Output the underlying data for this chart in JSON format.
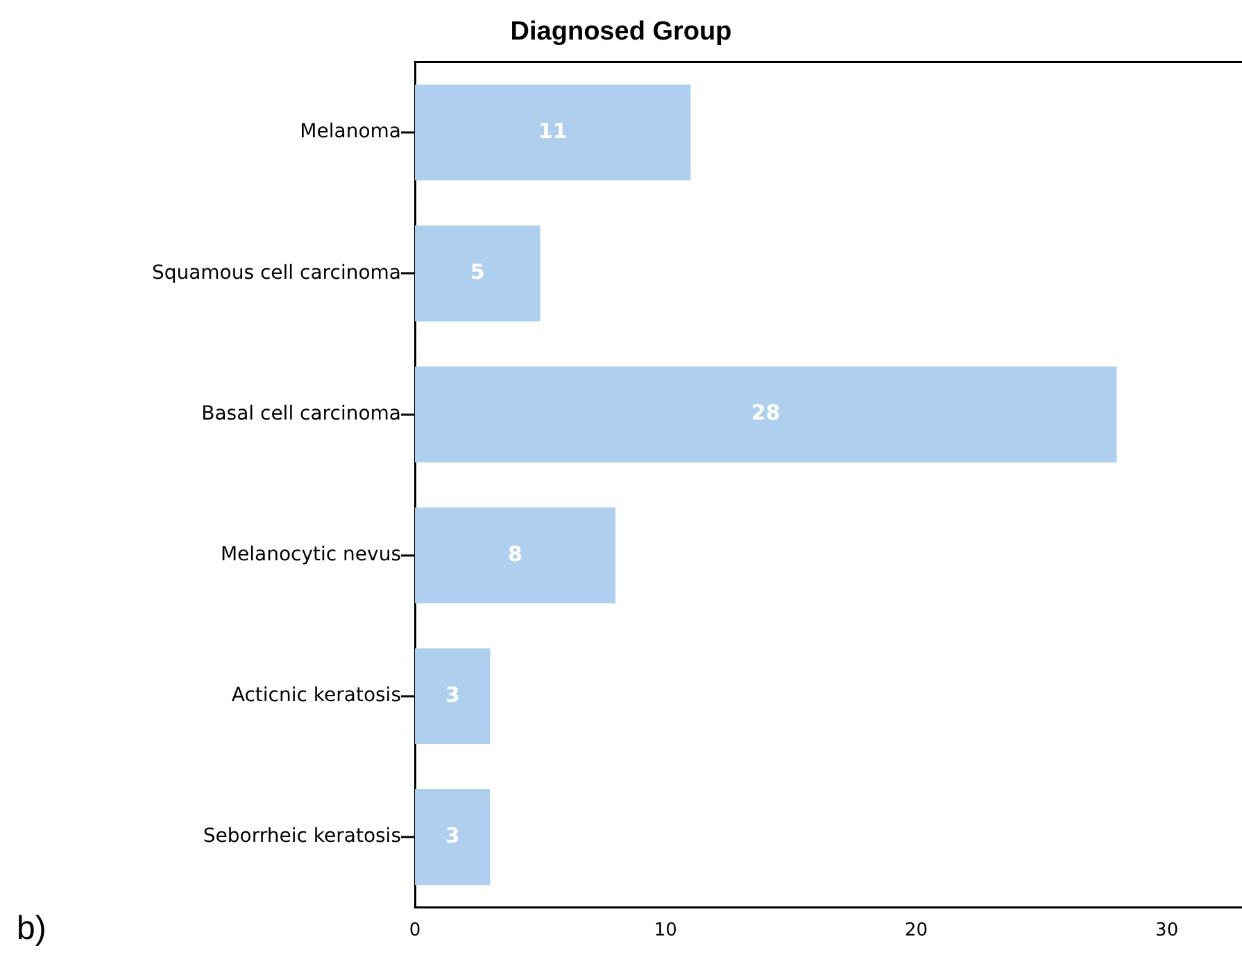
{
  "chart_data": {
    "type": "bar",
    "orientation": "horizontal",
    "title": "Diagnosed Group",
    "categories": [
      "Melanoma",
      "Squamous cell carcinoma",
      "Basal cell carcinoma",
      "Melanocytic nevus",
      "Acticnic keratosis",
      "Seborrheic keratosis"
    ],
    "values": [
      11,
      5,
      28,
      8,
      3,
      3
    ],
    "color": "#aed0ee",
    "xlim": [
      0,
      33
    ],
    "xticks": [
      0,
      10,
      20,
      30
    ],
    "grid": false,
    "legend": false,
    "data_labels": true,
    "annotations": [
      "b)"
    ]
  }
}
